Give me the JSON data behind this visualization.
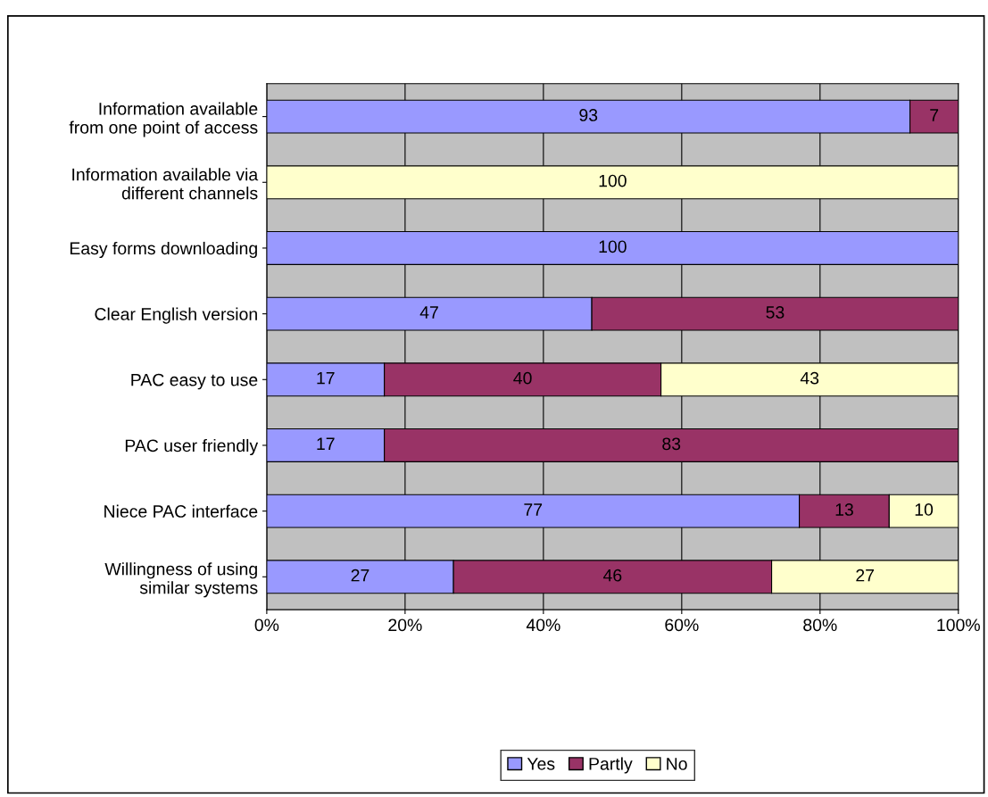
{
  "chart_data": {
    "type": "bar",
    "orientation": "horizontal",
    "stacked": true,
    "data_labels": true,
    "grid": "x",
    "legend": "bottom",
    "categories": [
      "Information available\nfrom one point of access",
      "Information available via\ndifferent channels",
      "Easy forms downloading",
      "Clear English version",
      "PAC easy to use",
      "PAC user friendly",
      "Niece PAC interface",
      "Willingness of using\nsimilar systems"
    ],
    "series": [
      {
        "name": "Yes",
        "color": "#9999ff",
        "values": [
          93,
          null,
          100,
          47,
          17,
          17,
          77,
          27
        ]
      },
      {
        "name": "Partly",
        "color": "#993366",
        "values": [
          7,
          null,
          null,
          53,
          40,
          83,
          13,
          46
        ]
      },
      {
        "name": "No",
        "color": "#ffffcc",
        "values": [
          null,
          100,
          null,
          null,
          43,
          null,
          10,
          27
        ]
      }
    ],
    "xlim": [
      0,
      100
    ],
    "xticks": [
      {
        "value": 0,
        "label": "0%"
      },
      {
        "value": 20,
        "label": "20%"
      },
      {
        "value": 40,
        "label": "40%"
      },
      {
        "value": 60,
        "label": "60%"
      },
      {
        "value": 80,
        "label": "80%"
      },
      {
        "value": 100,
        "label": "100%"
      }
    ]
  }
}
